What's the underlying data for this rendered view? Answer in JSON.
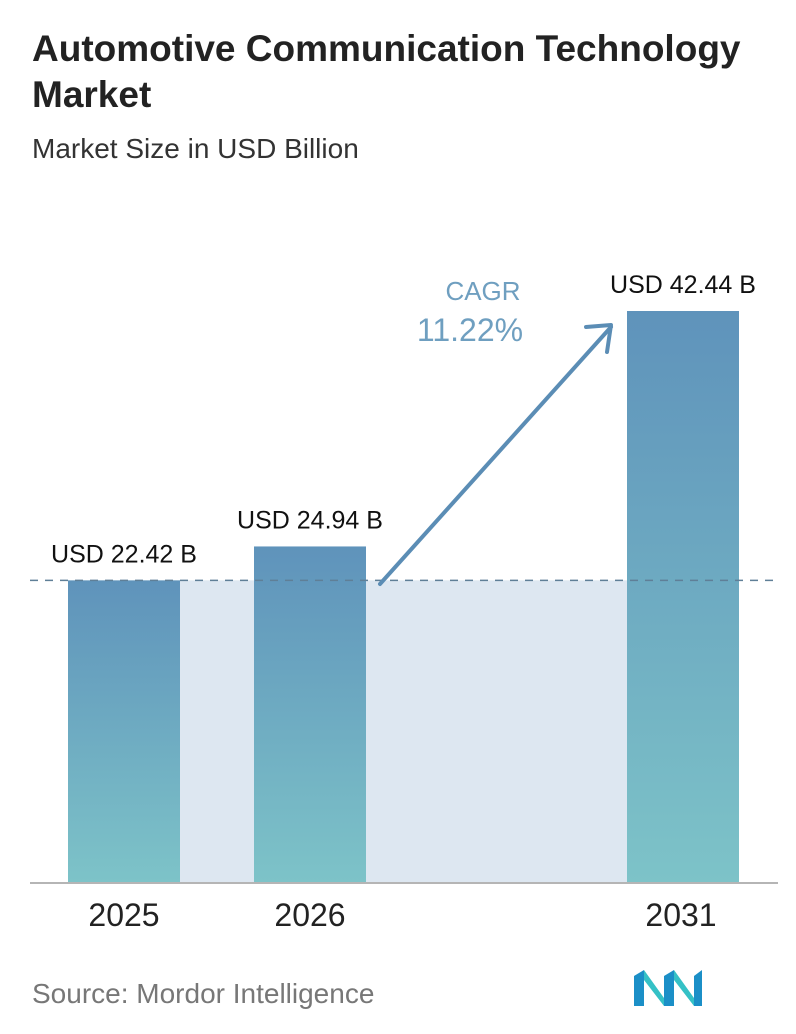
{
  "header": {
    "title": "Automotive Communication Technology Market",
    "subtitle": "Market Size in USD Billion"
  },
  "cagr": {
    "label": "CAGR",
    "value": "11.22%"
  },
  "footer": {
    "source": "Source: Mordor Intelligence",
    "logo_icon": "mordor-intelligence-logo-icon"
  },
  "colors": {
    "bar_top": "#5f93bb",
    "bar_bottom": "#7dc3c8",
    "band": "#dde7f1",
    "cagr_text": "#6f9fc0",
    "arrow": "#5b8db5",
    "dashed_line": "#5f7f97",
    "axis": "#b5b5b5"
  },
  "chart_data": {
    "type": "bar",
    "title": "Automotive Communication Technology Market",
    "subtitle": "Market Size in USD Billion",
    "categories": [
      "2025",
      "2026",
      "2031"
    ],
    "values": [
      22.42,
      24.94,
      42.44
    ],
    "value_labels": [
      "USD 22.42 B",
      "USD 24.94 B",
      "USD 42.44 B"
    ],
    "unit": "USD Billion",
    "ylim": [
      0,
      42.44
    ],
    "grid": false,
    "legend": "none",
    "annotations": [
      {
        "label": "CAGR",
        "value": "11.22%"
      }
    ]
  }
}
